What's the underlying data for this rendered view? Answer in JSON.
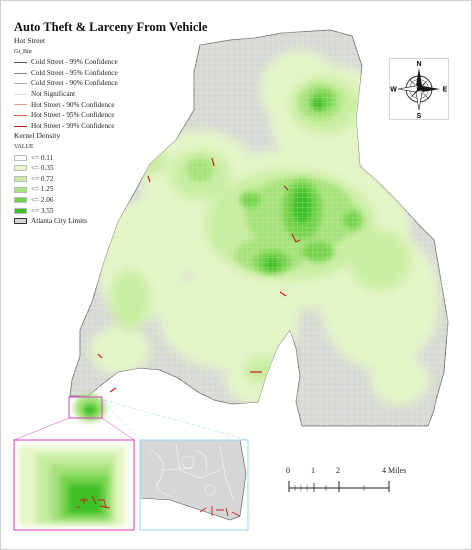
{
  "title": "Auto Theft & Larceny From Vehicle",
  "legend": {
    "hot_street_header": "Hot Street",
    "gi_bin_label": "Gi_Bin",
    "gi_bin_items": [
      {
        "label": "Cold Street - 99% Confidence",
        "color": "#555555"
      },
      {
        "label": "Cold Street - 95% Confidence",
        "color": "#888888"
      },
      {
        "label": "Cold Street - 90% Confidence",
        "color": "#aaaaaa"
      },
      {
        "label": "Not Significant",
        "color": "#d8d8d8"
      },
      {
        "label": "Hot Street - 90% Confidence",
        "color": "#e8a080"
      },
      {
        "label": "Hot Street - 95% Confidence",
        "color": "#dd5f3f"
      },
      {
        "label": "Hot Street - 99% Confidence",
        "color": "#c81e1e"
      }
    ],
    "kernel_header": "Kernel Density",
    "value_label": "VALUE",
    "kernel_items": [
      {
        "label": "<= 0.11",
        "color": "#ffffff"
      },
      {
        "label": "<= 0.35",
        "color": "#e6f7c8"
      },
      {
        "label": "<= 0.72",
        "color": "#c8eda0"
      },
      {
        "label": "<= 1.25",
        "color": "#a6e27a"
      },
      {
        "label": "<= 2.06",
        "color": "#74d34c"
      },
      {
        "label": "<= 3.55",
        "color": "#3ebf28"
      }
    ],
    "city_limits_label": "Atlanta City Limits"
  },
  "compass": {
    "n": "N",
    "s": "S",
    "e": "E",
    "w": "W"
  },
  "scale_bar": {
    "labels": [
      "0",
      "1",
      "2",
      "4 Miles"
    ],
    "values": [
      0,
      1,
      2,
      4
    ]
  },
  "colors": {
    "city_fill": "#d6d6d6",
    "street_cold": "#e7e7e7",
    "hot_street": "#c81e1e",
    "inset_border_left": "#d83cc4",
    "inset_border_right": "#9ad6f0"
  }
}
